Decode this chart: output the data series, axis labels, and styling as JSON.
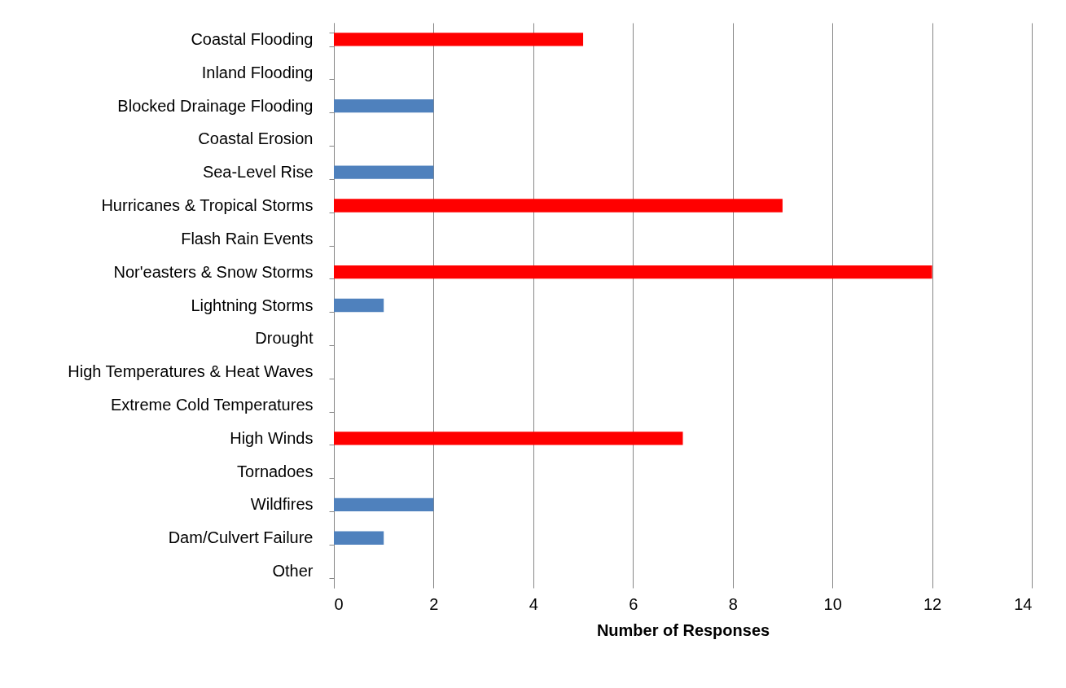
{
  "chart_data": {
    "type": "bar",
    "orientation": "horizontal",
    "xlabel": "Number of Responses",
    "categories": [
      "Coastal Flooding",
      "Inland Flooding",
      "Blocked Drainage Flooding",
      "Coastal Erosion",
      "Sea-Level Rise",
      "Hurricanes & Tropical Storms",
      "Flash Rain Events",
      "Nor'easters & Snow Storms",
      "Lightning Storms",
      "Drought",
      "High Temperatures & Heat Waves",
      "Extreme Cold Temperatures",
      "High Winds",
      "Tornadoes",
      "Wildfires",
      "Dam/Culvert Failure",
      "Other"
    ],
    "values": [
      5,
      0,
      2,
      0,
      2,
      9,
      0,
      12,
      1,
      0,
      0,
      0,
      7,
      0,
      2,
      1,
      0
    ],
    "colors": [
      "#ff0000",
      "#4f81bd",
      "#4f81bd",
      "#4f81bd",
      "#4f81bd",
      "#ff0000",
      "#4f81bd",
      "#ff0000",
      "#4f81bd",
      "#4f81bd",
      "#4f81bd",
      "#4f81bd",
      "#ff0000",
      "#4f81bd",
      "#4f81bd",
      "#4f81bd",
      "#4f81bd"
    ],
    "xlim": [
      0,
      14
    ],
    "xticks": [
      0,
      2,
      4,
      6,
      8,
      10,
      12,
      14
    ],
    "grid": "x"
  }
}
